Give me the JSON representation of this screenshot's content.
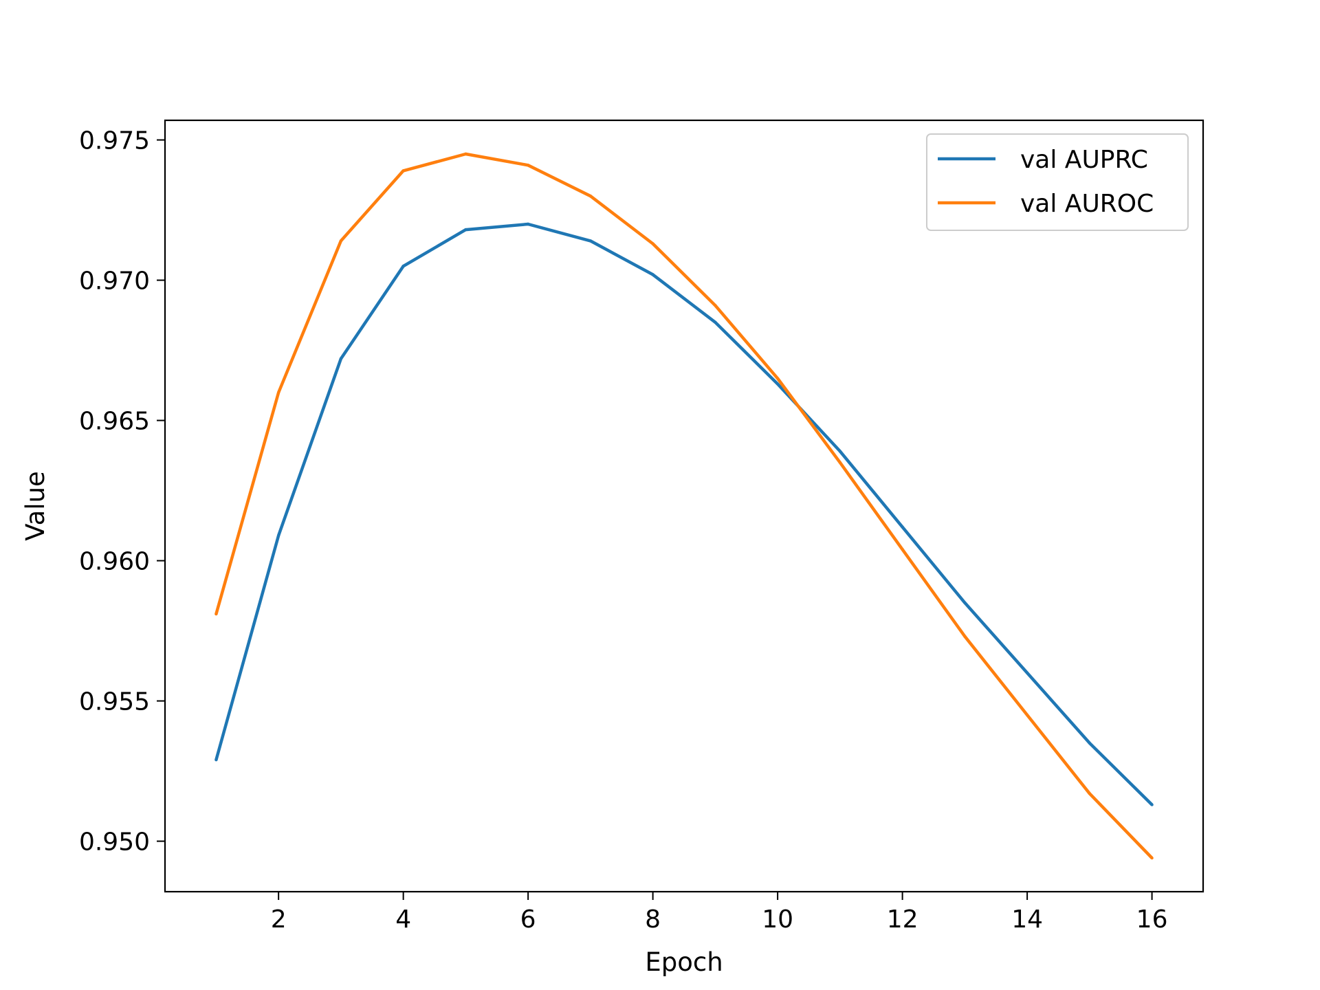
{
  "chart_data": {
    "type": "line",
    "title": "",
    "xlabel": "Epoch",
    "ylabel": "Value",
    "xlim": [
      0.18,
      16.82
    ],
    "ylim": [
      0.9482,
      0.9757
    ],
    "xticks": [
      2,
      4,
      6,
      8,
      10,
      12,
      14,
      16
    ],
    "xtick_labels": [
      "2",
      "4",
      "6",
      "8",
      "10",
      "12",
      "14",
      "16"
    ],
    "yticks": [
      0.95,
      0.955,
      0.96,
      0.965,
      0.97,
      0.975
    ],
    "ytick_labels": [
      "0.950",
      "0.955",
      "0.960",
      "0.965",
      "0.970",
      "0.975"
    ],
    "grid": false,
    "legend_position": "top-right",
    "x": [
      1,
      2,
      3,
      4,
      5,
      6,
      7,
      8,
      9,
      10,
      11,
      12,
      13,
      14,
      15,
      16
    ],
    "series": [
      {
        "name": "val AUPRC",
        "color": "#1f77b4",
        "values": [
          0.9529,
          0.9609,
          0.9672,
          0.9705,
          0.9718,
          0.972,
          0.9714,
          0.9702,
          0.9685,
          0.9663,
          0.9639,
          0.9612,
          0.9585,
          0.956,
          0.9535,
          0.9513
        ]
      },
      {
        "name": "val AUROC",
        "color": "#ff7f0e",
        "values": [
          0.9581,
          0.966,
          0.9714,
          0.9739,
          0.9745,
          0.9741,
          0.973,
          0.9713,
          0.9691,
          0.9665,
          0.9635,
          0.9604,
          0.9573,
          0.9545,
          0.9517,
          0.9494
        ]
      }
    ]
  }
}
